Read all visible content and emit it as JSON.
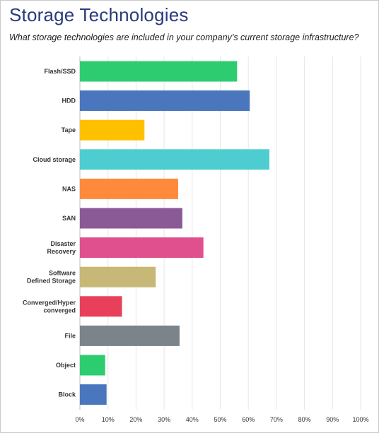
{
  "chart_data": {
    "type": "bar",
    "orientation": "horizontal",
    "title": "Storage Technologies",
    "subtitle": "What storage technologies are included in your company’s current storage infrastructure?",
    "categories": [
      [
        "Flash/SSD"
      ],
      [
        "HDD"
      ],
      [
        "Tape"
      ],
      [
        "Cloud storage"
      ],
      [
        "NAS"
      ],
      [
        "SAN"
      ],
      [
        "Disaster",
        "Recovery"
      ],
      [
        "Software",
        "Defined Storage"
      ],
      [
        "Converged/Hyper",
        "converged"
      ],
      [
        "File"
      ],
      [
        "Object"
      ],
      [
        "Block"
      ]
    ],
    "values": [
      56,
      60.5,
      23,
      67.5,
      35,
      36.5,
      44,
      27,
      15,
      35.5,
      9,
      9.5
    ],
    "colors": [
      "#2ecc71",
      "#4a76be",
      "#ffc000",
      "#4ecdd0",
      "#ff8a3c",
      "#8a5a96",
      "#e0508e",
      "#c8b878",
      "#e8405a",
      "#7a848a",
      "#2ecc71",
      "#4a76be"
    ],
    "x_ticks": [
      "0%",
      "10%",
      "20%",
      "30%",
      "40%",
      "50%",
      "60%",
      "70%",
      "80%",
      "90%",
      "100%"
    ],
    "xlim": [
      0,
      100
    ],
    "grid": "vertical"
  }
}
